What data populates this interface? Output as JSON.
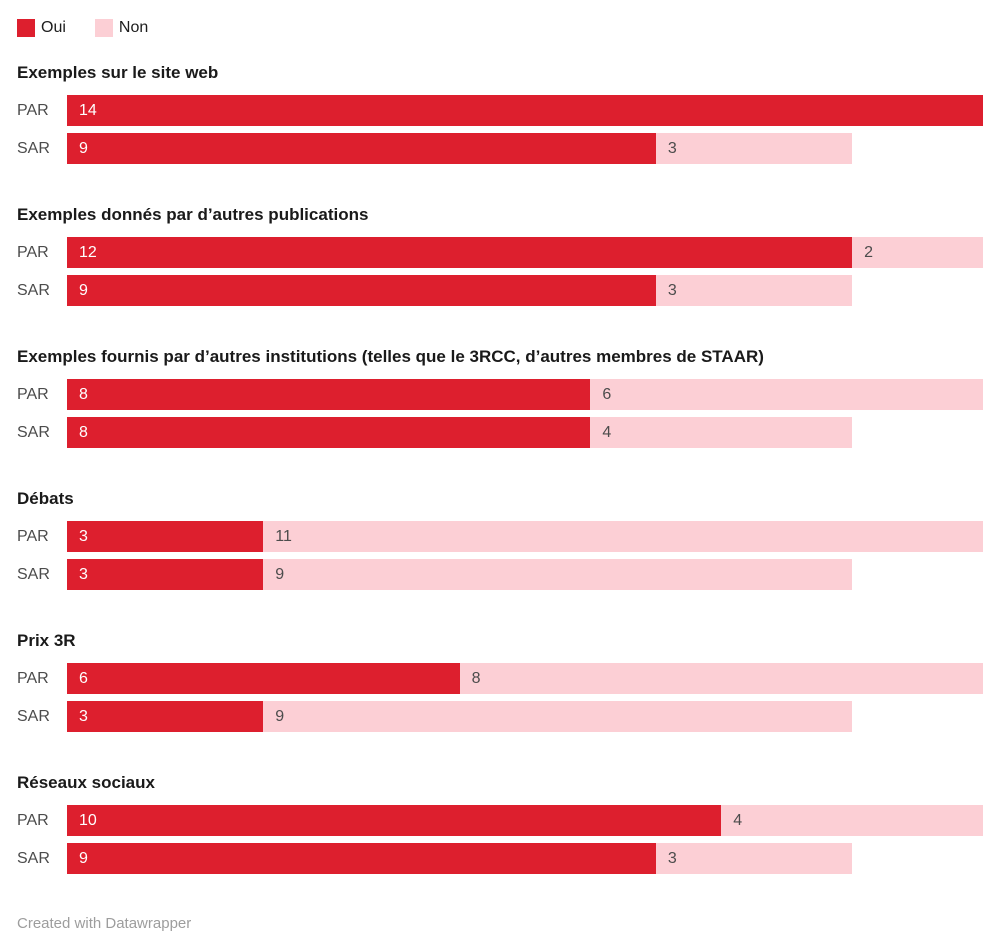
{
  "legend": {
    "items": [
      {
        "key": "oui",
        "label": "Oui",
        "color": "#dd1f2e"
      },
      {
        "key": "non",
        "label": "Non",
        "color": "#fccfd5"
      }
    ]
  },
  "footer": {
    "credit": "Created with Datawrapper"
  },
  "chart_data": {
    "type": "bar",
    "variant": "horizontal-stacked-grouped",
    "series_names": [
      "Oui",
      "Non"
    ],
    "colors": {
      "oui": "#dd1f2e",
      "non": "#fccfd5"
    },
    "value_label_colors": {
      "on_oui": "#ffffff",
      "on_non": "#4c4c4c"
    },
    "x_max": 14,
    "grid": false,
    "axes_visible": false,
    "legend_position": "top-left",
    "groups": [
      {
        "title": "Exemples sur le site web",
        "rows": [
          {
            "label": "PAR",
            "oui": 14,
            "non": 0
          },
          {
            "label": "SAR",
            "oui": 9,
            "non": 3
          }
        ]
      },
      {
        "title": "Exemples donnés par d’autres publications",
        "rows": [
          {
            "label": "PAR",
            "oui": 12,
            "non": 2
          },
          {
            "label": "SAR",
            "oui": 9,
            "non": 3
          }
        ]
      },
      {
        "title": "Exemples fournis par d’autres institutions (telles que le 3RCC, d’autres membres de STAAR)",
        "rows": [
          {
            "label": "PAR",
            "oui": 8,
            "non": 6
          },
          {
            "label": "SAR",
            "oui": 8,
            "non": 4
          }
        ]
      },
      {
        "title": "Débats",
        "rows": [
          {
            "label": "PAR",
            "oui": 3,
            "non": 11
          },
          {
            "label": "SAR",
            "oui": 3,
            "non": 9
          }
        ]
      },
      {
        "title": "Prix 3R",
        "rows": [
          {
            "label": "PAR",
            "oui": 6,
            "non": 8
          },
          {
            "label": "SAR",
            "oui": 3,
            "non": 9
          }
        ]
      },
      {
        "title": "Réseaux sociaux",
        "rows": [
          {
            "label": "PAR",
            "oui": 10,
            "non": 4
          },
          {
            "label": "SAR",
            "oui": 9,
            "non": 3
          }
        ]
      }
    ]
  }
}
